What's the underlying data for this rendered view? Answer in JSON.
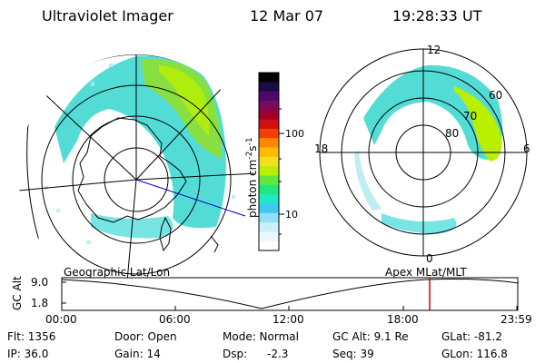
{
  "header": {
    "instrument": "Ultraviolet Imager",
    "date": "12 Mar 07",
    "time": "19:28:33 UT"
  },
  "colorbar": {
    "label": "photon cm",
    "sup1": "-2",
    "mid": "s",
    "sup2": "-1",
    "ticks": [
      "100",
      "10"
    ],
    "colors": [
      "#000000",
      "#1a0a45",
      "#4b0a6e",
      "#7a0a5a",
      "#a0002a",
      "#d01010",
      "#f04000",
      "#ff8800",
      "#ffbb00",
      "#f0e020",
      "#b8f000",
      "#60e840",
      "#20e880",
      "#20e8c8",
      "#40c8f0",
      "#90e0f8",
      "#c8f0f8",
      "#e8f8fc",
      "#ffffff"
    ]
  },
  "left_map": {
    "label": "Geographic Lat/Lon"
  },
  "right_map": {
    "label": "Apex MLat/MLT",
    "lat_labels": [
      "60",
      "70",
      "80"
    ],
    "hour_labels": {
      "top": "12",
      "bottom": "0",
      "left": "18",
      "right": "6"
    }
  },
  "timeline": {
    "ylabel": "GC Alt",
    "yticks": [
      "9.0",
      "1.8"
    ],
    "xticks": [
      "00:00",
      "06:00",
      "12:00",
      "18:00",
      "23:59"
    ],
    "marker_color": "#cc0000"
  },
  "status": {
    "flt": "Flt: 1356",
    "ip": "IP: 36.0",
    "door": "Door: Open",
    "gain": "Gain: 14",
    "mode": "Mode: Normal",
    "dsp_label": "Dsp:",
    "dsp_value": "-2.3",
    "gcalt": "GC Alt: 9.1 Re",
    "seq": "Seq: 39",
    "glat": "GLat: -81.2",
    "glon": "GLon: 116.8"
  }
}
